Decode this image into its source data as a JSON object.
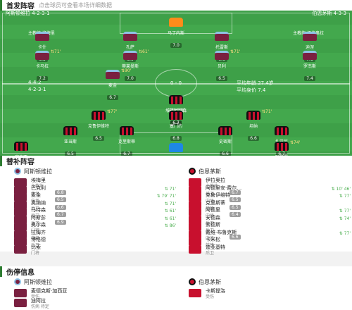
{
  "lineup_header": {
    "title": "首发阵容",
    "subtitle": "点击球员可查看本场详细数据"
  },
  "home": {
    "name": "阿斯顿维拉",
    "coach_label": "主教练 埃梅里"
  },
  "away": {
    "name": "伯恩茅斯",
    "coach_label": "主教练 伊拉奥拉"
  },
  "pitch": {
    "top_left_label": "阿斯顿维拉 4-2-3-1",
    "top_right_label": "伯恩茅斯 4-3-3",
    "score_text": "0 - 0",
    "left_notes": [
      "4-4-2",
      "4-2-3-1"
    ],
    "right_notes": [
      "平均年龄 27.4岁",
      "平均身价 7.4"
    ]
  },
  "home_players": [
    {
      "name": "马丁内斯",
      "rating": "7.0",
      "shirt": "gk-a",
      "event": ""
    },
    {
      "name": "卡什",
      "rating": "6.5",
      "shirt": "claret",
      "event": ""
    },
    {
      "name": "孔萨",
      "rating": "6.9",
      "shirt": "claret",
      "event": ""
    },
    {
      "name": "托雷斯",
      "rating": "6.6",
      "shirt": "claret",
      "event": ""
    },
    {
      "name": "迪涅",
      "rating": "7.1",
      "shirt": "claret",
      "event": ""
    },
    {
      "name": "卡马拉",
      "rating": "7.2",
      "shirt": "claret",
      "event": "71'"
    },
    {
      "name": "蒂莱曼斯",
      "rating": "7.0",
      "shirt": "claret",
      "event": "61'"
    },
    {
      "name": "贝利",
      "rating": "6.5",
      "shirt": "claret",
      "event": "71'"
    },
    {
      "name": "罗杰斯",
      "rating": "7.4",
      "shirt": "claret",
      "event": ""
    },
    {
      "name": "麦金",
      "rating": "6.7",
      "shirt": "claret",
      "event": "90'"
    },
    {
      "name": "沃特金斯",
      "rating": "6.5",
      "shirt": "claret",
      "event": ""
    }
  ],
  "away_players": [
    {
      "name": "埃瓦尼尔森",
      "rating": "6.7",
      "shirt": "stripe",
      "event": ""
    },
    {
      "name": "克鲁伊维特",
      "rating": "6.5",
      "shirt": "stripe",
      "event": "77'"
    },
    {
      "name": "塞门约",
      "rating": "6.8",
      "shirt": "stripe",
      "event": ""
    },
    {
      "name": "坦纳",
      "rating": "6.6",
      "shirt": "stripe",
      "event": "71'"
    },
    {
      "name": "亚当斯",
      "rating": "6.5",
      "shirt": "stripe",
      "event": ""
    },
    {
      "name": "克里斯蒂",
      "rating": "6.7",
      "shirt": "stripe",
      "event": ""
    },
    {
      "name": "史密斯",
      "rating": "6.6",
      "shirt": "stripe",
      "event": ""
    },
    {
      "name": "扎巴尼",
      "rating": "6.7",
      "shirt": "stripe",
      "event": ""
    },
    {
      "name": "塞内西",
      "rating": "6.8",
      "shirt": "stripe",
      "event": ""
    },
    {
      "name": "阿劳霍",
      "rating": "6.4",
      "shirt": "stripe",
      "event": "74'"
    },
    {
      "name": "纳瓦斯",
      "rating": "6.6",
      "shirt": "gk-b",
      "event": ""
    }
  ],
  "subs_header": {
    "title": "替补阵容"
  },
  "home_subs": [
    {
      "name": "埃梅里",
      "pos": "主教练",
      "rating": "",
      "event": ""
    },
    {
      "name": "巴克利",
      "pos": "中场",
      "rating": "6.8",
      "event": "71'"
    },
    {
      "name": "麦金",
      "pos": "中场",
      "rating": "6.5",
      "event": "79' 71'"
    },
    {
      "name": "奥纳纳",
      "pos": "后卫",
      "rating": "6.6",
      "event": "71'"
    },
    {
      "name": "马特森",
      "pos": "后卫",
      "rating": "6.7",
      "event": "61'"
    },
    {
      "name": "阿斯彭",
      "pos": "后卫",
      "rating": "6.9",
      "event": "61'"
    },
    {
      "name": "奥尔森",
      "pos": "门将",
      "rating": "",
      "event": "86'"
    },
    {
      "name": "拉姆齐",
      "pos": "中场",
      "rating": "",
      "event": ""
    },
    {
      "name": "博格德",
      "pos": "后卫",
      "rating": "",
      "event": ""
    },
    {
      "name": "比索",
      "pos": "门将",
      "rating": "",
      "event": ""
    }
  ],
  "away_subs": [
    {
      "name": "伊拉奥拉",
      "pos": "主教练",
      "rating": "",
      "event": ""
    },
    {
      "name": "阿德里安·费尔…",
      "pos": "后卫",
      "rating": "6.7",
      "event": "10' 46'"
    },
    {
      "name": "克鲁伊维特",
      "pos": "中场",
      "rating": "6.5",
      "event": "77'"
    },
    {
      "name": "克里斯蒂",
      "pos": "前锋",
      "rating": "6.5",
      "event": ""
    },
    {
      "name": "阿德里",
      "pos": "中场",
      "rating": "6.4",
      "event": "77'"
    },
    {
      "name": "安德森",
      "pos": "后卫",
      "rating": "",
      "event": "74'"
    },
    {
      "name": "索德斯",
      "pos": "后卫",
      "rating": "",
      "event": ""
    },
    {
      "name": "戴维·布鲁克斯",
      "pos": "中场",
      "rating": "6.6",
      "event": "77'"
    },
    {
      "name": "卡米松",
      "pos": "前锋",
      "rating": "",
      "event": ""
    },
    {
      "name": "迪亚基特",
      "pos": "后卫",
      "rating": "",
      "event": ""
    }
  ],
  "injury_header": {
    "title": "伤停信息"
  },
  "home_injuries": [
    {
      "name": "麦德克斯·加西亚",
      "pos": "受伤"
    },
    {
      "name": "迪阿拉",
      "pos": "伤病 待定"
    }
  ],
  "away_injuries": [
    {
      "name": "卡斯提洛",
      "pos": "受伤"
    }
  ]
}
